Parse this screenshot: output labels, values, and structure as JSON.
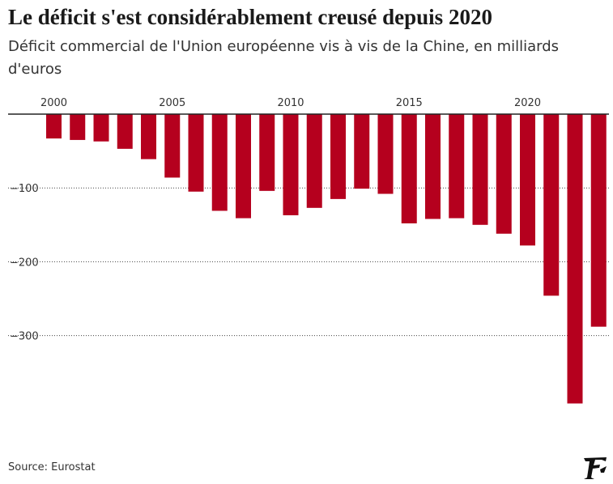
{
  "title": "Le déficit s'est considérablement creusé depuis 2020",
  "subtitle": "Déficit commercial de l'Union européenne vis à vis de la Chine, en milliards d'euros",
  "source": "Source: Eurostat",
  "colors": {
    "bar": "#b5001e",
    "axis": "#222222",
    "grid": "#444444",
    "text": "#333333"
  },
  "logo_icon": "le-figaro-f-icon",
  "chart_data": {
    "type": "bar",
    "title": "",
    "xlabel": "",
    "ylabel": "",
    "x_axis_position": "top",
    "grid": "dotted-horizontal",
    "legend": "none",
    "ylim": [
      -390,
      0
    ],
    "y_ticks": [
      -100,
      -200,
      -300
    ],
    "y_tick_labels": [
      "−100",
      "−200",
      "−300"
    ],
    "x_tick_labels": [
      "2000",
      "2005",
      "2010",
      "2015",
      "2020"
    ],
    "categories": [
      "2000",
      "2001",
      "2002",
      "2003",
      "2004",
      "2005",
      "2006",
      "2007",
      "2008",
      "2009",
      "2010",
      "2011",
      "2012",
      "2013",
      "2014",
      "2015",
      "2016",
      "2017",
      "2018",
      "2019",
      "2020",
      "2021",
      "2022",
      "2023"
    ],
    "values": [
      -33,
      -35,
      -37,
      -47,
      -61,
      -86,
      -105,
      -131,
      -141,
      -104,
      -137,
      -127,
      -115,
      -101,
      -108,
      -148,
      -142,
      -141,
      -150,
      -162,
      -178,
      -246,
      -392,
      -288
    ]
  }
}
